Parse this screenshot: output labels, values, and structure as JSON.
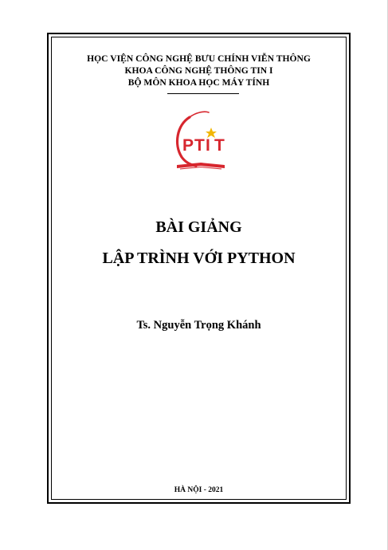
{
  "header": {
    "line1": "HỌC VIỆN CÔNG NGHỆ BƯU CHÍNH VIỄN THÔNG",
    "line2": "KHOA CÔNG NGHỆ THÔNG TIN I",
    "line3": "BỘ MÔN KHOA HỌC MÁY TÍNH"
  },
  "logo": {
    "text": "PTIT",
    "color": "#d7262e"
  },
  "title": {
    "line1": "BÀI GIẢNG",
    "line2": "LẬP TRÌNH VỚI PYTHON"
  },
  "author": "Ts. Nguyễn Trọng Khánh",
  "footer": "HÀ NỘI - 2021"
}
